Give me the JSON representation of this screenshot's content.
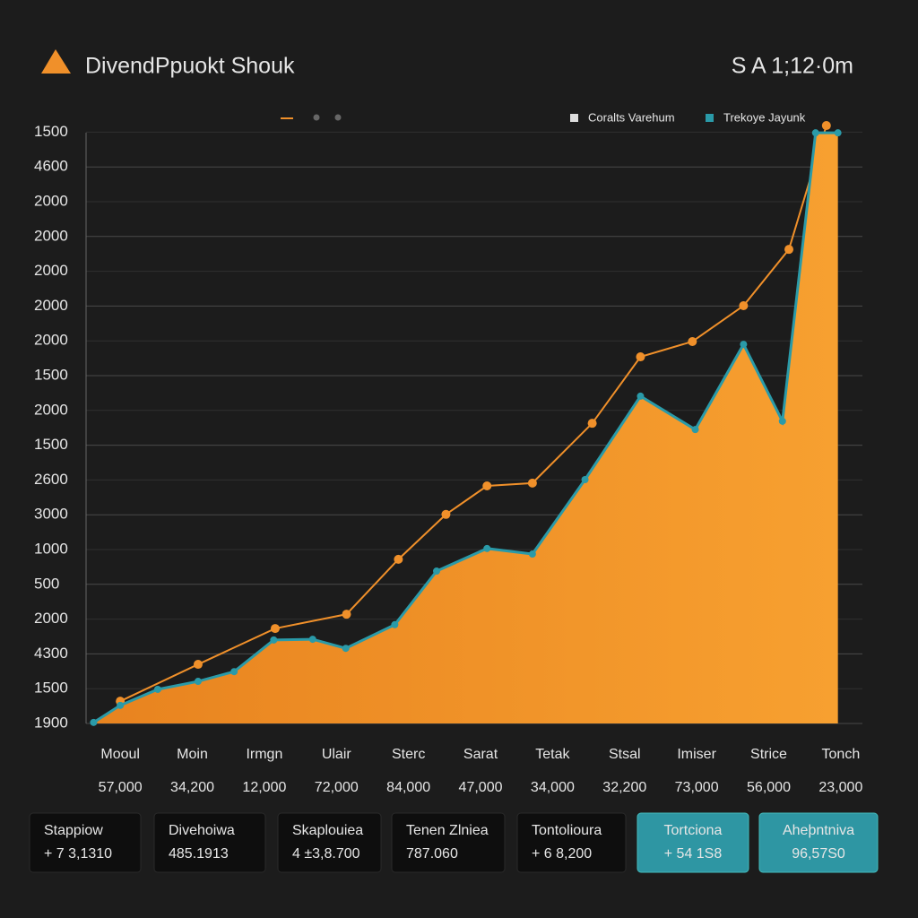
{
  "header": {
    "title": "DivendPpuokt Shouk",
    "clock": "S A 1;12·0m"
  },
  "chart_data": {
    "type": "area",
    "categories": [
      "Mooul",
      "Moin",
      "Irmgn",
      "Ulair",
      "Sterc",
      "Sarat",
      "Tetak",
      "Stsal",
      "Imiser",
      "Strice",
      "Tonch"
    ],
    "category_labels": [
      "57,000",
      "34,200",
      "12,000",
      "72,000",
      "84,000",
      "47,000",
      "34,000",
      "32,200",
      "73,000",
      "56,000",
      "23,000"
    ],
    "xlim": [
      -0.4,
      10.3
    ],
    "ylim": [
      0,
      17.5
    ],
    "yticks": [
      {
        "value": 0,
        "label": "1900"
      },
      {
        "value": 1,
        "label": "1500"
      },
      {
        "value": 2,
        "label": "4300"
      },
      {
        "value": 3,
        "label": "2000"
      },
      {
        "value": 4,
        "label": "500"
      },
      {
        "value": 5,
        "label": "1000"
      },
      {
        "value": 6,
        "label": "3000"
      },
      {
        "value": 7,
        "label": "2600"
      },
      {
        "value": 8,
        "label": "1500"
      },
      {
        "value": 9,
        "label": "2000"
      },
      {
        "value": 10,
        "label": "1500"
      },
      {
        "value": 11,
        "label": "2000"
      },
      {
        "value": 12,
        "label": "2000"
      },
      {
        "value": 13,
        "label": "2000"
      },
      {
        "value": 14,
        "label": "2000"
      },
      {
        "value": 15,
        "label": "2000"
      },
      {
        "value": 16,
        "label": "4600"
      },
      {
        "value": 17,
        "label": "1500"
      }
    ],
    "grid": true,
    "series": [
      {
        "name": "Coralts  Varehum",
        "color": "#f0902a",
        "legend_color": "#dddddd",
        "fill": false,
        "x": [
          0,
          1.08,
          2.15,
          3.14,
          3.86,
          4.52,
          5.09,
          5.72,
          6.55,
          7.22,
          7.94,
          8.65,
          9.28,
          9.8
        ],
        "values": [
          0.64,
          1.7,
          2.73,
          3.14,
          4.72,
          6.01,
          6.83,
          6.91,
          8.63,
          10.54,
          10.98,
          12.01,
          13.63,
          17.19
        ]
      },
      {
        "name": "Trekoye Jayunk",
        "color": "#2a9aa8",
        "legend_color": "#2a9aa8",
        "fill": true,
        "x": [
          -0.37,
          0,
          0.52,
          1.08,
          1.58,
          2.13,
          2.67,
          3.13,
          3.81,
          4.39,
          5.09,
          5.72,
          6.45,
          7.22,
          7.98,
          8.65,
          9.19,
          9.65,
          9.96
        ],
        "values": [
          0.03,
          0.52,
          0.98,
          1.21,
          1.49,
          2.4,
          2.42,
          2.16,
          2.84,
          4.38,
          5.03,
          4.87,
          7.01,
          9.41,
          8.45,
          10.9,
          8.69,
          16.98,
          16.98
        ]
      }
    ]
  },
  "cards": [
    {
      "title": "Stappiow",
      "value": "+ 7 3,1310",
      "accent": false
    },
    {
      "title": "Divehoiwa",
      "value": "485.1913",
      "accent": false
    },
    {
      "title": "Skaplouiea",
      "value": "4 ±3,8.700",
      "accent": false
    },
    {
      "title": "Tenen Zlniea",
      "value": "787.060",
      "accent": false
    },
    {
      "title": "Tontolioura",
      "value": "+ 6 8,200",
      "accent": false
    },
    {
      "title": "Tortciona",
      "value": "+ 54 1S8",
      "accent": true
    },
    {
      "title": "Aheþntniva",
      "value": "96,57S0",
      "accent": true
    }
  ]
}
